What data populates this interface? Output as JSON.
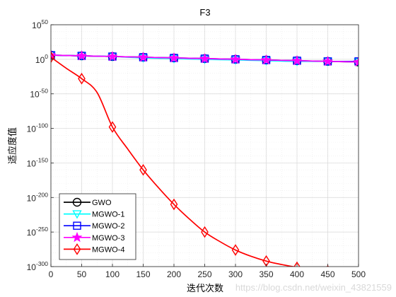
{
  "chart_data": {
    "type": "line",
    "title": "F3",
    "xlabel": "迭代次数",
    "ylabel": "适应度值",
    "xlim": [
      0,
      500
    ],
    "ylim": [
      -300,
      50
    ],
    "yscale": "log",
    "xticks": [
      0,
      50,
      100,
      150,
      200,
      250,
      300,
      350,
      400,
      450,
      500
    ],
    "yticks": [
      {
        "base": "10",
        "exp": "50",
        "value": 50
      },
      {
        "base": "10",
        "exp": "0",
        "value": 0
      },
      {
        "base": "10",
        "exp": "-50",
        "value": -50
      },
      {
        "base": "10",
        "exp": "-100",
        "value": -100
      },
      {
        "base": "10",
        "exp": "-150",
        "value": -150
      },
      {
        "base": "10",
        "exp": "-200",
        "value": -200
      },
      {
        "base": "10",
        "exp": "-250",
        "value": -250
      },
      {
        "base": "10",
        "exp": "-300",
        "value": -300
      }
    ],
    "grid": true,
    "minor_grid": true,
    "legend_position": "bottom-left",
    "series": [
      {
        "name": "GWO",
        "color": "#000000",
        "marker": "circle",
        "x": [
          0,
          50,
          100,
          150,
          200,
          250,
          300,
          350,
          400,
          450,
          500
        ],
        "log10_y": [
          6,
          5,
          4,
          3,
          2,
          1,
          0,
          -1,
          -2,
          -3,
          -4
        ]
      },
      {
        "name": "MGWO-1",
        "color": "#00ffff",
        "marker": "triangle-down",
        "x": [
          0,
          50,
          100,
          150,
          200,
          250,
          300,
          350,
          400,
          450,
          500
        ],
        "log10_y": [
          6,
          5,
          4,
          2,
          1,
          0,
          -1,
          -2,
          -3,
          -3,
          -4
        ]
      },
      {
        "name": "MGWO-2",
        "color": "#0000ff",
        "marker": "square",
        "x": [
          0,
          50,
          100,
          150,
          200,
          250,
          300,
          350,
          400,
          450,
          500
        ],
        "log10_y": [
          6,
          5,
          4,
          3,
          2,
          1,
          0,
          -1,
          -2,
          -3,
          -3
        ]
      },
      {
        "name": "MGWO-3",
        "color": "#ff00ff",
        "marker": "star",
        "x": [
          0,
          50,
          100,
          150,
          200,
          250,
          300,
          350,
          400,
          450,
          500
        ],
        "log10_y": [
          6,
          5,
          4,
          3,
          2,
          1,
          0,
          -1,
          -2,
          -3,
          -4
        ]
      },
      {
        "name": "MGWO-4",
        "color": "#ff0000",
        "marker": "diamond",
        "x": [
          0,
          25,
          50,
          75,
          100,
          125,
          150,
          175,
          200,
          225,
          250,
          275,
          300,
          325,
          350,
          375,
          400,
          425,
          450,
          475,
          500
        ],
        "log10_y": [
          3,
          -13,
          -28,
          -48,
          -98,
          -130,
          -160,
          -186,
          -210,
          -231,
          -250,
          -264,
          -276,
          -285,
          -292,
          -297,
          -301,
          -304,
          -306,
          -308,
          -309
        ]
      }
    ]
  },
  "watermark": "https://blog.csdn.net/weixin_43821559"
}
